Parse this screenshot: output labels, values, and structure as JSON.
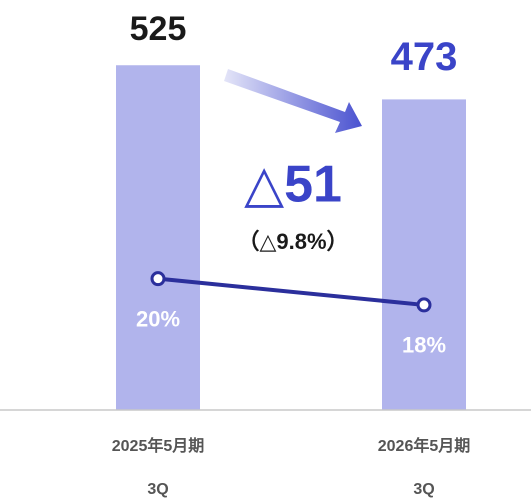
{
  "chart_data": {
    "type": "bar",
    "categories": [
      [
        "2025年5月期",
        "3Q"
      ],
      [
        "2026年5月期",
        "3Q"
      ]
    ],
    "series": [
      {
        "type": "bar",
        "color": "#b1b4ec",
        "values": [
          525,
          473
        ],
        "label_colors": [
          "#1a1a1a",
          "#3a44c8"
        ]
      },
      {
        "type": "line",
        "axis": "y2",
        "color": "#2b2f9c",
        "values": [
          20,
          18
        ],
        "value_labels": [
          "20%",
          "18%"
        ]
      }
    ],
    "ylim": [
      0,
      600
    ],
    "y2lim": [
      10,
      40
    ],
    "annotations": [
      "△51",
      "（△9.8%）"
    ]
  }
}
